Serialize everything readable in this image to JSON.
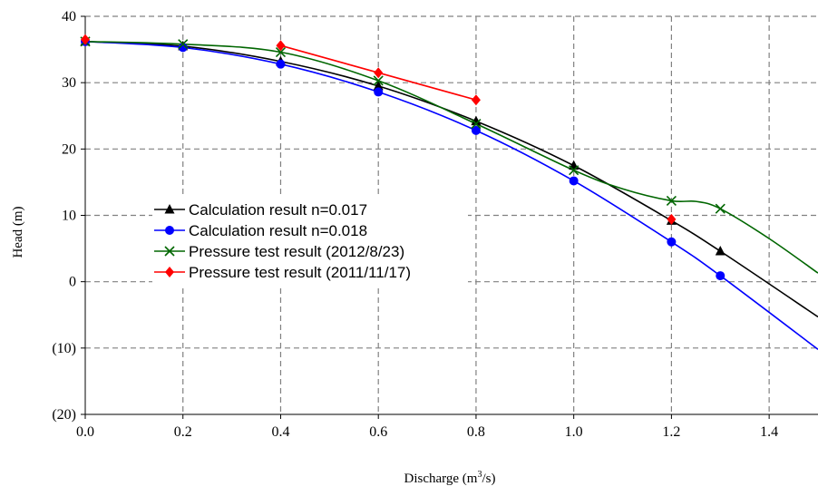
{
  "chart_data": {
    "type": "line",
    "xlabel": "Discharge (m³/s)",
    "xlabel_main": "Discharge (m",
    "xlabel_sup": "3",
    "xlabel_tail": "/s)",
    "ylabel": "Head (m)",
    "xlim": [
      0,
      1.5
    ],
    "ylim": [
      -20,
      40
    ],
    "x_ticks": [
      0,
      0.2,
      0.4,
      0.6,
      0.8,
      1.0,
      1.2,
      1.4
    ],
    "x_tick_labels": [
      "0.0",
      "0.2",
      "0.4",
      "0.6",
      "0.8",
      "1.0",
      "1.2",
      "1.4"
    ],
    "y_ticks": [
      40,
      30,
      20,
      10,
      0,
      -10,
      -20
    ],
    "y_tick_labels": [
      "40",
      "30",
      "20",
      "10",
      "0",
      "(10)",
      "(20)"
    ],
    "grid": true,
    "legend_position": "center-left",
    "series": [
      {
        "name": "Calculation result n=0.017",
        "color": "#000000",
        "marker": "triangle",
        "x": [
          0.0,
          0.2,
          0.4,
          0.6,
          0.8,
          1.0,
          1.2,
          1.3
        ],
        "y": [
          36.2,
          35.5,
          33.2,
          29.5,
          24.2,
          17.5,
          9.2,
          4.6
        ],
        "curve_x": [
          0.0,
          0.2,
          0.4,
          0.6,
          0.8,
          1.0,
          1.2,
          1.3,
          1.5
        ],
        "curve_y": [
          36.2,
          35.5,
          33.2,
          29.5,
          24.2,
          17.5,
          9.2,
          4.6,
          -5.3
        ]
      },
      {
        "name": "Calculation result n=0.018",
        "color": "#0000FF",
        "marker": "circle",
        "x": [
          0.0,
          0.2,
          0.4,
          0.6,
          0.8,
          1.0,
          1.2,
          1.3
        ],
        "y": [
          36.2,
          35.3,
          32.8,
          28.6,
          22.8,
          15.2,
          6.0,
          0.9
        ],
        "curve_x": [
          0.0,
          0.2,
          0.4,
          0.6,
          0.8,
          1.0,
          1.2,
          1.3,
          1.5
        ],
        "curve_y": [
          36.2,
          35.3,
          32.8,
          28.6,
          22.8,
          15.2,
          6.0,
          0.9,
          -10.2
        ]
      },
      {
        "name": "Pressure test result (2012/8/23)",
        "color": "#006600",
        "marker": "x",
        "x": [
          0.0,
          0.2,
          0.4,
          0.6,
          0.8,
          1.0,
          1.2,
          1.3
        ],
        "y": [
          36.2,
          35.8,
          34.6,
          30.3,
          23.8,
          16.8,
          12.2,
          11.0
        ],
        "curve_x": [
          0.0,
          0.2,
          0.4,
          0.6,
          0.8,
          1.0,
          1.1,
          1.2,
          1.25,
          1.3,
          1.4,
          1.5
        ],
        "curve_y": [
          36.2,
          35.8,
          34.6,
          30.3,
          23.8,
          16.8,
          14.0,
          12.2,
          12.1,
          11.0,
          6.5,
          1.3
        ]
      },
      {
        "name": "Pressure test result (2011/11/17)",
        "color": "#FF0000",
        "marker": "diamond",
        "x": [
          0.0,
          0.4,
          0.6,
          0.8,
          1.2
        ],
        "y": [
          36.5,
          35.6,
          31.5,
          27.4,
          9.4
        ],
        "curve_x": [
          0.4,
          0.6,
          0.8
        ],
        "curve_y": [
          35.6,
          31.5,
          27.4
        ]
      }
    ]
  }
}
